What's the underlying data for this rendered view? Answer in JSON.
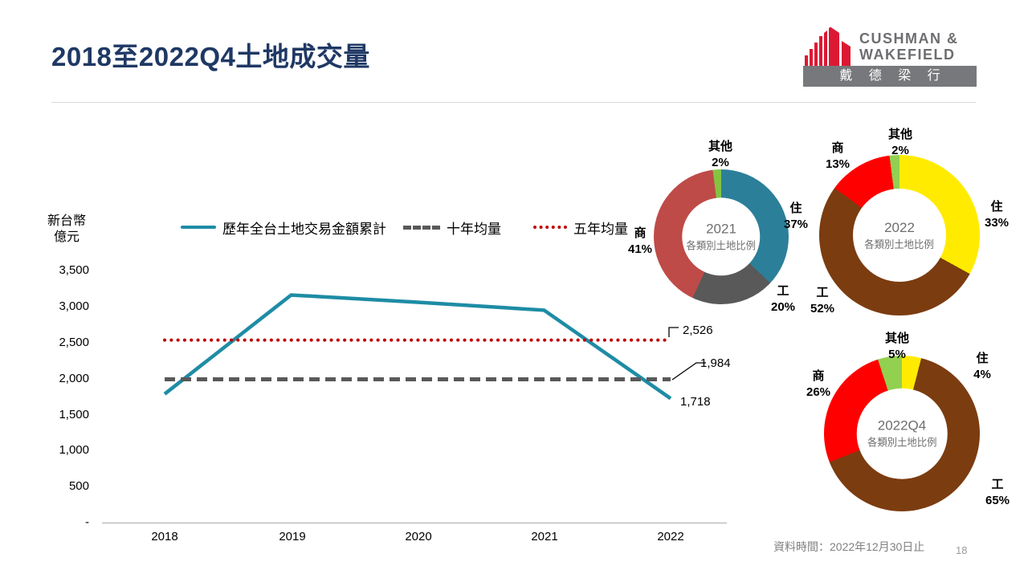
{
  "slide": {
    "title": "2018至2022Q4土地成交量",
    "page_number": "18",
    "source_note": "資料時間：2022年12月30日止"
  },
  "logo": {
    "line1": "CUSHMAN &",
    "line2": "WAKEFIELD",
    "chinese": "戴 德 梁 行",
    "brand_red": "#DC1933",
    "brand_gray": "#6D6E71"
  },
  "axis_unit": {
    "line1": "新台幣",
    "line2": "億元"
  },
  "chart_data": [
    {
      "type": "line",
      "x": [
        "2018",
        "2019",
        "2020",
        "2021",
        "2022"
      ],
      "ylim": [
        0,
        3500
      ],
      "yticks": [
        "3,500",
        "3,000",
        "2,500",
        "2,000",
        "1,500",
        "1,000",
        "500",
        "-"
      ],
      "unit": "新台幣億元",
      "grid": false,
      "legend_position": "top",
      "series": [
        {
          "name": "歷年全台土地交易金額累計",
          "style": "solid",
          "color": "#1E8CA5",
          "values": [
            1780,
            3150,
            3050,
            2940,
            1718
          ]
        },
        {
          "name": "十年均量",
          "style": "dashed",
          "color": "#595959",
          "values": [
            1984,
            1984,
            1984,
            1984,
            1984
          ]
        },
        {
          "name": "五年均量",
          "style": "dotted",
          "color": "#C00000",
          "values": [
            2526,
            2526,
            2526,
            2526,
            2526
          ]
        }
      ],
      "annotations": [
        {
          "text": "2,526",
          "refers_to": "五年均量"
        },
        {
          "text": "1,984",
          "refers_to": "十年均量"
        },
        {
          "text": "1,718",
          "refers_to": "歷年全台土地交易金額累計 2022"
        }
      ]
    },
    {
      "type": "pie",
      "center_title": "2021",
      "center_subtitle": "各類別土地比例",
      "slices": [
        {
          "label": "住",
          "value": 37,
          "pct": "37%",
          "color": "#2C7F99"
        },
        {
          "label": "工",
          "value": 20,
          "pct": "20%",
          "color": "#595959"
        },
        {
          "label": "商",
          "value": 41,
          "pct": "41%",
          "color": "#BE4B48"
        },
        {
          "label": "其他",
          "value": 2,
          "pct": "2%",
          "color": "#84C441"
        }
      ]
    },
    {
      "type": "pie",
      "center_title": "2022",
      "center_subtitle": "各類別土地比例",
      "slices": [
        {
          "label": "住",
          "value": 33,
          "pct": "33%",
          "color": "#FFEB00"
        },
        {
          "label": "工",
          "value": 52,
          "pct": "52%",
          "color": "#7B3C10"
        },
        {
          "label": "商",
          "value": 13,
          "pct": "13%",
          "color": "#FF0000"
        },
        {
          "label": "其他",
          "value": 2,
          "pct": "2%",
          "color": "#92D050"
        }
      ]
    },
    {
      "type": "pie",
      "center_title": "2022Q4",
      "center_subtitle": "各類別土地比例",
      "slices": [
        {
          "label": "住",
          "value": 4,
          "pct": "4%",
          "color": "#FFEB00"
        },
        {
          "label": "工",
          "value": 65,
          "pct": "65%",
          "color": "#7B3C10"
        },
        {
          "label": "商",
          "value": 26,
          "pct": "26%",
          "color": "#FF0000"
        },
        {
          "label": "其他",
          "value": 5,
          "pct": "5%",
          "color": "#92D050"
        }
      ]
    }
  ]
}
